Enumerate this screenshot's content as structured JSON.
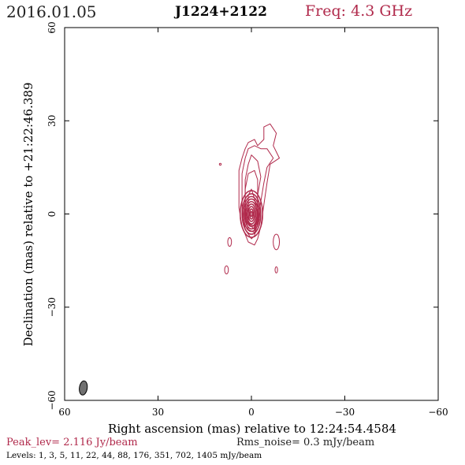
{
  "header": {
    "date": "2016.01.05",
    "source": "J1224+2122",
    "freq": "Freq: 4.3 GHz"
  },
  "footer": {
    "peak": "Peak_lev=  2.116 Jy/beam",
    "rms": "Rms_noise=  0.3 mJy/beam",
    "levels": "Levels:   1,    3,    5,   11,   22,   44,   88,  176,  351,  702,  1405 mJy/beam"
  },
  "chart_data": {
    "type": "contour",
    "xlabel": "Right ascension (mas) relative to 12:24:54.4584",
    "ylabel": "Declination (mas) relative to +21:22:46.389",
    "xlim": [
      60,
      -60
    ],
    "ylim": [
      -60,
      60
    ],
    "xticks": [
      60,
      30,
      0,
      -30,
      -60
    ],
    "yticks": [
      -60,
      -30,
      0,
      30,
      60
    ],
    "xtick_labels": [
      "60",
      "30",
      "0",
      "−30",
      "−60"
    ],
    "ytick_labels": [
      "−60",
      "−30",
      "0",
      "30",
      "60"
    ],
    "contour_color": "#b0294b",
    "beam_color": "#707070",
    "levels_mJy": [
      1,
      3,
      5,
      11,
      22,
      44,
      88,
      176,
      351,
      702,
      1405
    ],
    "peak_Jy_per_beam": 2.116,
    "rms_noise_mJy_per_beam": 0.3,
    "core_position_mas": [
      0,
      0
    ],
    "jet_direction": "north-east",
    "beam": {
      "x": 54,
      "y": -56,
      "major": 3.8,
      "minor": 2.1
    }
  }
}
